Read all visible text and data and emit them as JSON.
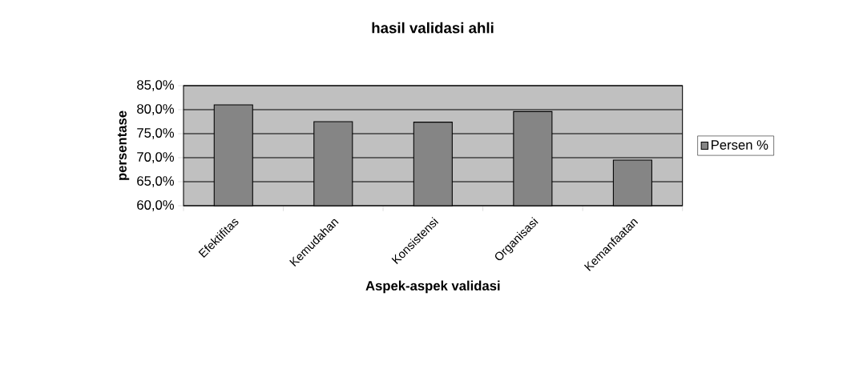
{
  "chart_data": {
    "type": "bar",
    "title": "hasil validasi ahli",
    "xlabel": "Aspek-aspek validasi",
    "ylabel": "persentase",
    "categories": [
      "Efektifitas",
      "Kemudahan",
      "Konsistensi",
      "Organisasi",
      "Kemanfaatan"
    ],
    "series": [
      {
        "name": "Persen %",
        "color": "#858585",
        "values": [
          81.0,
          77.5,
          77.4,
          79.6,
          69.5
        ]
      }
    ],
    "ylim": [
      60,
      85
    ],
    "yticks": [
      {
        "value": 60,
        "label": "60,0%"
      },
      {
        "value": 65,
        "label": "65,0%"
      },
      {
        "value": 70,
        "label": "70,0%"
      },
      {
        "value": 75,
        "label": "75,0%"
      },
      {
        "value": 80,
        "label": "80,0%"
      },
      {
        "value": 85,
        "label": "85,0%"
      }
    ],
    "grid": "y",
    "legend": "right"
  }
}
